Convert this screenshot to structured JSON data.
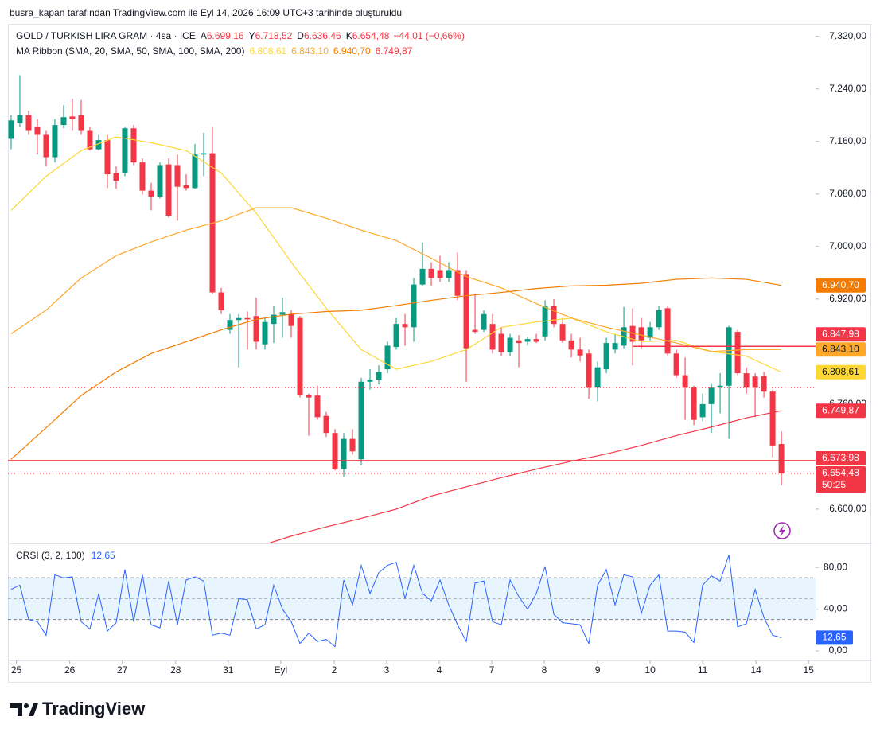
{
  "header": {
    "text": "busra_kapan tarafından TradingView.com ile Eyl 14, 2026 16:09 UTC+3 tarihinde oluşturuldu"
  },
  "footer": {
    "brand": "TradingView"
  },
  "chart_data": {
    "type": "candlestick",
    "title": "GOLD / TURKISH LIRA GRAM · 4sa · ICE",
    "ohlc_header": [
      {
        "key": "A",
        "label": "6.699,16"
      },
      {
        "key": "Y",
        "label": "6.718,52"
      },
      {
        "key": "D",
        "label": "6.636,46"
      },
      {
        "key": "K",
        "label": "6.654,48"
      }
    ],
    "change_label": "−44,01 (−0,66%)",
    "up_color": "#089981",
    "down_color": "#f23645",
    "xlim": [
      -0.36,
      91.9
    ],
    "xticks": [
      {
        "value": 0.6,
        "label": "25"
      },
      {
        "value": 6.7,
        "label": "26"
      },
      {
        "value": 12.7,
        "label": "27"
      },
      {
        "value": 18.8,
        "label": "28"
      },
      {
        "value": 24.8,
        "label": "31"
      },
      {
        "value": 30.8,
        "label": "Eyl"
      },
      {
        "value": 36.9,
        "label": "2"
      },
      {
        "value": 42.9,
        "label": "3"
      },
      {
        "value": 48.9,
        "label": "4"
      },
      {
        "value": 54.9,
        "label": "7"
      },
      {
        "value": 60.9,
        "label": "8"
      },
      {
        "value": 67,
        "label": "9"
      },
      {
        "value": 73,
        "label": "10"
      },
      {
        "value": 79,
        "label": "11"
      },
      {
        "value": 85.1,
        "label": "14"
      },
      {
        "value": 91.1,
        "label": "15"
      }
    ],
    "ylim": [
      6549,
      7339
    ],
    "yticks": [
      {
        "value": 7320,
        "label": "7.320,00"
      },
      {
        "value": 7240,
        "label": "7.240,00"
      },
      {
        "value": 7160,
        "label": "7.160,00"
      },
      {
        "value": 7080,
        "label": "7.080,00"
      },
      {
        "value": 7000,
        "label": "7.000,00"
      },
      {
        "value": 6920,
        "label": "6.920,00"
      },
      {
        "value": 6760,
        "label": "6.760,00"
      },
      {
        "value": 6600,
        "label": "6.600,00"
      }
    ],
    "grid": false,
    "candles": {
      "open": [
        7164,
        7188,
        7200,
        7182,
        7170,
        7136,
        7185,
        7198,
        7200,
        7176,
        7148,
        7162,
        7112,
        7112,
        7180,
        7128,
        7085,
        7076,
        7125,
        7124,
        7093,
        7089,
        7140,
        7142,
        6930,
        6873,
        6888,
        6891,
        6894,
        6851,
        6882,
        6896,
        6897,
        6891,
        6774,
        6773,
        6742,
        6716,
        6661,
        6707,
        6676,
        6794,
        6797,
        6813,
        6847,
        6882,
        6877,
        6942,
        6966,
        6964,
        6952,
        6964,
        6958,
        6873,
        6873,
        6882,
        6867,
        6839,
        6857,
        6855,
        6859,
        6863,
        6910,
        6882,
        6857,
        6843,
        6837,
        6785,
        6813,
        6843,
        6849,
        6879,
        6877,
        6861,
        6877,
        6906,
        6837,
        6804,
        6785,
        6740,
        6760,
        6785,
        6788,
        6870,
        6807,
        6802,
        6803,
        6779,
        6699.16
      ],
      "high": [
        7200,
        7261,
        7207,
        7194,
        7176,
        7194,
        7215,
        7225,
        7223,
        7182,
        7170,
        7170,
        7122,
        7182,
        7185,
        7134,
        7097,
        7128,
        7134,
        7140,
        7110,
        7156,
        7173,
        7182,
        6937,
        6897,
        6897,
        6901,
        6922,
        6891,
        6910,
        6922,
        6903,
        6894,
        6776,
        6788,
        6748,
        6722,
        6716,
        6722,
        6800,
        6813,
        6819,
        6855,
        6891,
        6897,
        6952,
        7006,
        6976,
        6986,
        6976,
        6991,
        6964,
        6928,
        6903,
        6897,
        6877,
        6867,
        6865,
        6863,
        6867,
        6918,
        6920,
        6891,
        6867,
        6861,
        6843,
        6825,
        6861,
        6867,
        6908,
        6906,
        6891,
        6885,
        6910,
        6910,
        6843,
        6831,
        6788,
        6776,
        6792,
        6807,
        6879,
        6873,
        6816,
        6807,
        6809,
        6782,
        6718.52
      ],
      "low": [
        7148,
        7182,
        7170,
        7140,
        7122,
        7128,
        7180,
        7176,
        7170,
        7146,
        7146,
        7089,
        7088,
        7107,
        7124,
        7079,
        7055,
        7073,
        7044,
        7039,
        7085,
        7088,
        7107,
        6928,
        6897,
        6867,
        6816,
        6843,
        6843,
        6843,
        6853,
        6861,
        6861,
        6770,
        6712,
        6736,
        6710,
        6659,
        6649,
        6683,
        6667,
        6782,
        6790,
        6807,
        6843,
        6849,
        6855,
        6940,
        6940,
        6946,
        6946,
        6918,
        6794,
        6867,
        6870,
        6837,
        6833,
        6833,
        6816,
        6849,
        6853,
        6857,
        6877,
        6853,
        6831,
        6825,
        6768,
        6764,
        6807,
        6837,
        6845,
        6819,
        6845,
        6857,
        6873,
        6834,
        6800,
        6736,
        6728,
        6734,
        6716,
        6746,
        6707,
        6804,
        6776,
        6740,
        6770,
        6679,
        6636.46
      ],
      "close": [
        7192,
        7200,
        7176,
        7170,
        7136,
        7185,
        7197,
        7194,
        7176,
        7148,
        7162,
        7110,
        7100,
        7180,
        7128,
        7085,
        7076,
        7124,
        7047,
        7091,
        7089,
        7140,
        7142,
        6930,
        6903,
        6888,
        6891,
        6889,
        6855,
        6885,
        6896,
        6900,
        6879,
        6774,
        6770,
        6740,
        6716,
        6661,
        6707,
        6688,
        6794,
        6797,
        6809,
        6849,
        6882,
        6877,
        6942,
        6966,
        6952,
        6952,
        6964,
        6925,
        6845,
        6870,
        6897,
        6843,
        6839,
        6861,
        6853,
        6859,
        6855,
        6910,
        6882,
        6857,
        6843,
        6834,
        6785,
        6816,
        6853,
        6853,
        6877,
        6855,
        6857,
        6877,
        6903,
        6837,
        6804,
        6785,
        6736,
        6760,
        6785,
        6788,
        6877,
        6807,
        6785,
        6785,
        6779,
        6697,
        6654.48
      ]
    },
    "ma_ribbon": {
      "label": "MA Ribbon (SMA, 20, SMA, 50, SMA, 100, SMA, 200)",
      "lines": [
        {
          "color": "#fdd835",
          "text_color": "#131722",
          "value_label": "6.808,61",
          "x": [
            0,
            4,
            8,
            12,
            16,
            20,
            24,
            28,
            32,
            36,
            40,
            44,
            48,
            52,
            56,
            60,
            64,
            68,
            72,
            76,
            80,
            84,
            88
          ],
          "values": [
            7055,
            7107,
            7146,
            7167,
            7158,
            7146,
            7112,
            7051,
            6976,
            6906,
            6843,
            6813,
            6825,
            6843,
            6877,
            6885,
            6891,
            6870,
            6855,
            6857,
            6840,
            6833,
            6808.61
          ]
        },
        {
          "color": "#ffa726",
          "text_color": "#131722",
          "value_label": "6.843,10",
          "x": [
            0,
            4,
            8,
            12,
            16,
            20,
            24,
            28,
            32,
            36,
            40,
            44,
            48,
            52,
            56,
            60,
            64,
            68,
            72,
            76,
            80,
            84,
            88
          ],
          "values": [
            6867,
            6903,
            6952,
            6986,
            7007,
            7025,
            7039,
            7059,
            7059,
            7043,
            7025,
            7009,
            6982,
            6954,
            6937,
            6913,
            6891,
            6877,
            6865,
            6853,
            6840,
            6843,
            6843.1
          ]
        },
        {
          "color": "#f57c00",
          "text_color": "#ffffff",
          "value_label": "6.940,70",
          "x": [
            0,
            4,
            8,
            12,
            16,
            20,
            24,
            28,
            32,
            36,
            40,
            44,
            48,
            52,
            56,
            60,
            64,
            68,
            72,
            76,
            80,
            84,
            88
          ],
          "values": [
            6676,
            6724,
            6773,
            6809,
            6837,
            6855,
            6873,
            6889,
            6897,
            6901,
            6903,
            6910,
            6918,
            6925,
            6930,
            6936,
            6940,
            6941,
            6944,
            6950,
            6952,
            6950,
            6940.7
          ]
        },
        {
          "color": "#f23645",
          "text_color": "#ffffff",
          "value_label": "6.749,87",
          "x": [
            28,
            32,
            36,
            40,
            44,
            48,
            52,
            56,
            60,
            64,
            68,
            72,
            76,
            80,
            84,
            88
          ],
          "values": [
            6542,
            6559,
            6573,
            6586,
            6600,
            6620,
            6634,
            6648,
            6661,
            6673,
            6684,
            6697,
            6712,
            6725,
            6739,
            6749.87
          ]
        }
      ]
    },
    "horizontal_lines": [
      {
        "value": 6847.98,
        "label": "6.847,98",
        "color": "#f23645",
        "from": 71
      },
      {
        "value": 6673.98,
        "label": "6.673,98",
        "color": "#f23645"
      }
    ],
    "dotted_levels": [
      {
        "value": 6785,
        "color": "#f23645"
      }
    ],
    "last_price": {
      "value": 6654.48,
      "label": "6.654,48",
      "countdown": "50:25",
      "color": "#f23645"
    },
    "crsi": {
      "title": "CRSI (3, 2, 100)",
      "value_label": "12,65",
      "color": "#2962ff",
      "ylim": [
        -9.2,
        102.3
      ],
      "yticks": [
        {
          "value": 80,
          "label": "80,00"
        },
        {
          "value": 40,
          "label": "40,00"
        },
        {
          "value": 0,
          "label": "0,00"
        }
      ],
      "band": [
        30,
        70
      ],
      "midline": 50,
      "values": [
        59,
        63,
        30,
        28,
        15,
        73,
        70,
        71,
        28,
        21,
        55,
        19,
        27,
        78,
        28,
        73,
        25,
        22,
        67,
        25,
        68,
        71,
        67,
        15,
        17,
        15,
        50,
        49,
        21,
        25,
        63,
        40,
        28,
        7,
        17,
        9,
        11,
        4,
        68,
        44,
        82,
        55,
        75,
        82,
        85,
        50,
        82,
        55,
        48,
        68,
        44,
        25,
        9,
        65,
        67,
        28,
        25,
        68,
        52,
        40,
        55,
        81,
        35,
        27,
        26,
        25,
        7,
        63,
        78,
        44,
        73,
        71,
        36,
        63,
        73,
        19,
        19,
        18,
        8,
        63,
        72,
        67,
        92,
        23,
        26,
        59,
        32,
        15,
        12.65
      ]
    }
  }
}
